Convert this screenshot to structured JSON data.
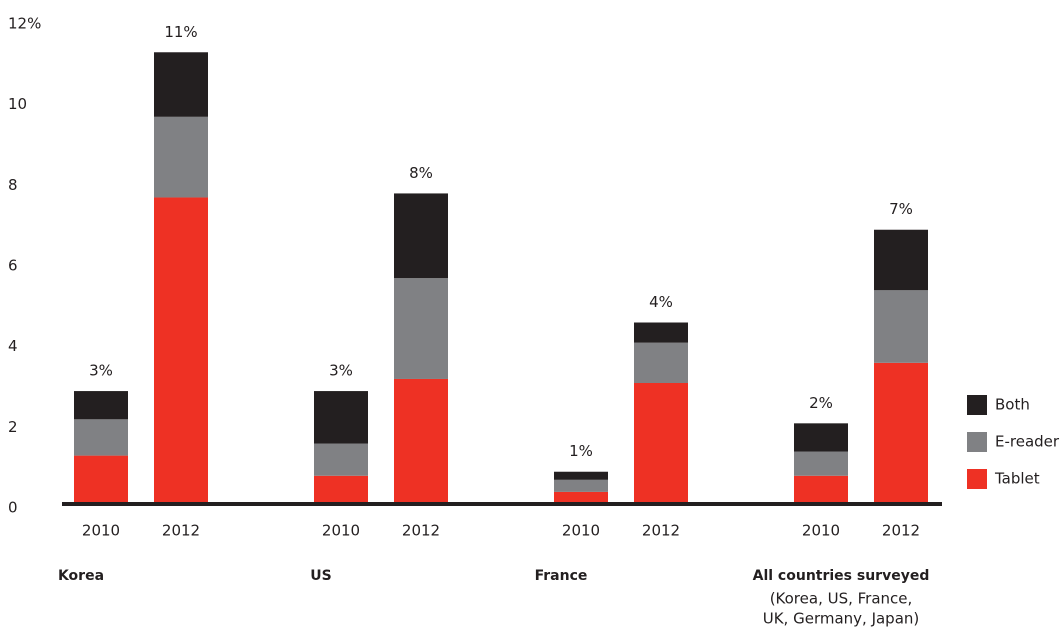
{
  "chart_data": {
    "type": "stacked_bar",
    "categories": [
      "2010",
      "2012",
      "2010",
      "2012",
      "2010",
      "2012",
      "2010",
      "2012"
    ],
    "groups": [
      {
        "label": "Korea"
      },
      {
        "label": "US"
      },
      {
        "label": "France"
      },
      {
        "label": "All countries surveyed",
        "note": [
          "(Korea, US, France,",
          "UK, Germany, Japan)"
        ]
      }
    ],
    "series": [
      {
        "name": "Tablet",
        "color": "#ee3124",
        "values": [
          1.2,
          7.6,
          0.7,
          3.1,
          0.3,
          3.0,
          0.7,
          3.5
        ]
      },
      {
        "name": "E-reader",
        "color": "#808184",
        "values": [
          0.9,
          2.0,
          0.8,
          2.5,
          0.3,
          1.0,
          0.6,
          1.8
        ]
      },
      {
        "name": "Both",
        "color": "#231f20",
        "values": [
          0.7,
          1.6,
          1.3,
          2.1,
          0.2,
          0.5,
          0.7,
          1.5
        ]
      }
    ],
    "total_labels": [
      "3%",
      "11%",
      "3%",
      "8%",
      "1%",
      "4%",
      "2%",
      "7%"
    ],
    "ylim": [
      0,
      12
    ],
    "yticks": [
      0,
      2,
      4,
      6,
      8,
      10,
      {
        "value": 12,
        "label": "12%"
      }
    ],
    "grid": false
  }
}
